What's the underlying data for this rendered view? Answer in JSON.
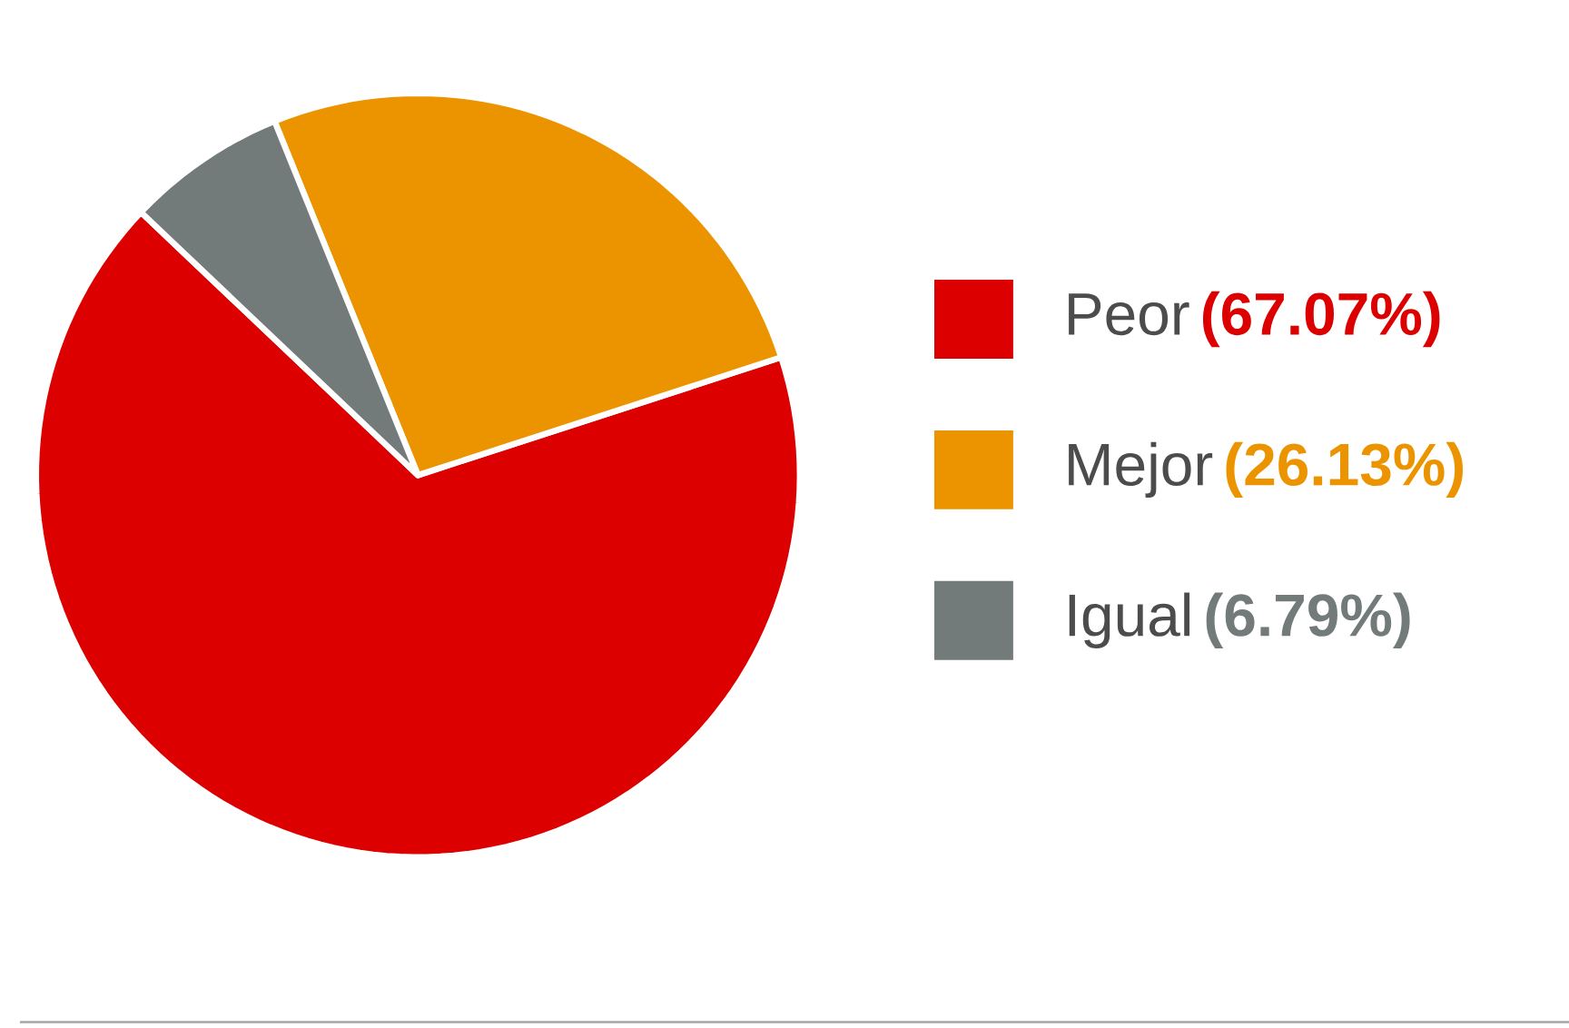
{
  "chart_data": {
    "type": "pie",
    "categories": [
      "Peor",
      "Mejor",
      "Igual"
    ],
    "values": [
      67.07,
      26.13,
      6.79
    ],
    "colors": [
      "#dc0000",
      "#ec9400",
      "#737a7a"
    ],
    "value_labels": [
      "(67.07%)",
      "(26.13%)",
      "(6.79%)"
    ],
    "legend": "right"
  }
}
